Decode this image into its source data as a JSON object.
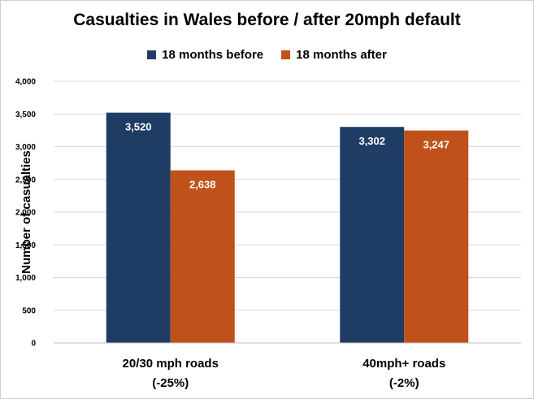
{
  "chart_data": {
    "type": "bar",
    "title": "Casualties in Wales before / after 20mph default",
    "xlabel": "",
    "ylabel": "Number of casualties",
    "categories": [
      [
        "20/30 mph roads",
        "(-25%)"
      ],
      [
        "40mph+ roads",
        "(-2%)"
      ]
    ],
    "series": [
      {
        "name": "18 months before",
        "color": "#1f3d64",
        "values": [
          3520,
          3302
        ],
        "labels": [
          "3,520",
          "3,302"
        ]
      },
      {
        "name": "18 months after",
        "color": "#c0511a",
        "values": [
          2638,
          3247
        ],
        "labels": [
          "2,638",
          "3,247"
        ]
      }
    ],
    "ylim": [
      0,
      4000
    ],
    "yticks": [
      0,
      500,
      1000,
      1500,
      2000,
      2500,
      3000,
      3500,
      4000
    ],
    "ytick_labels": [
      "0",
      "500",
      "1,000",
      "1,500",
      "2,000",
      "2,500",
      "3,000",
      "3,500",
      "4,000"
    ],
    "grid": true,
    "legend_position": "top"
  }
}
